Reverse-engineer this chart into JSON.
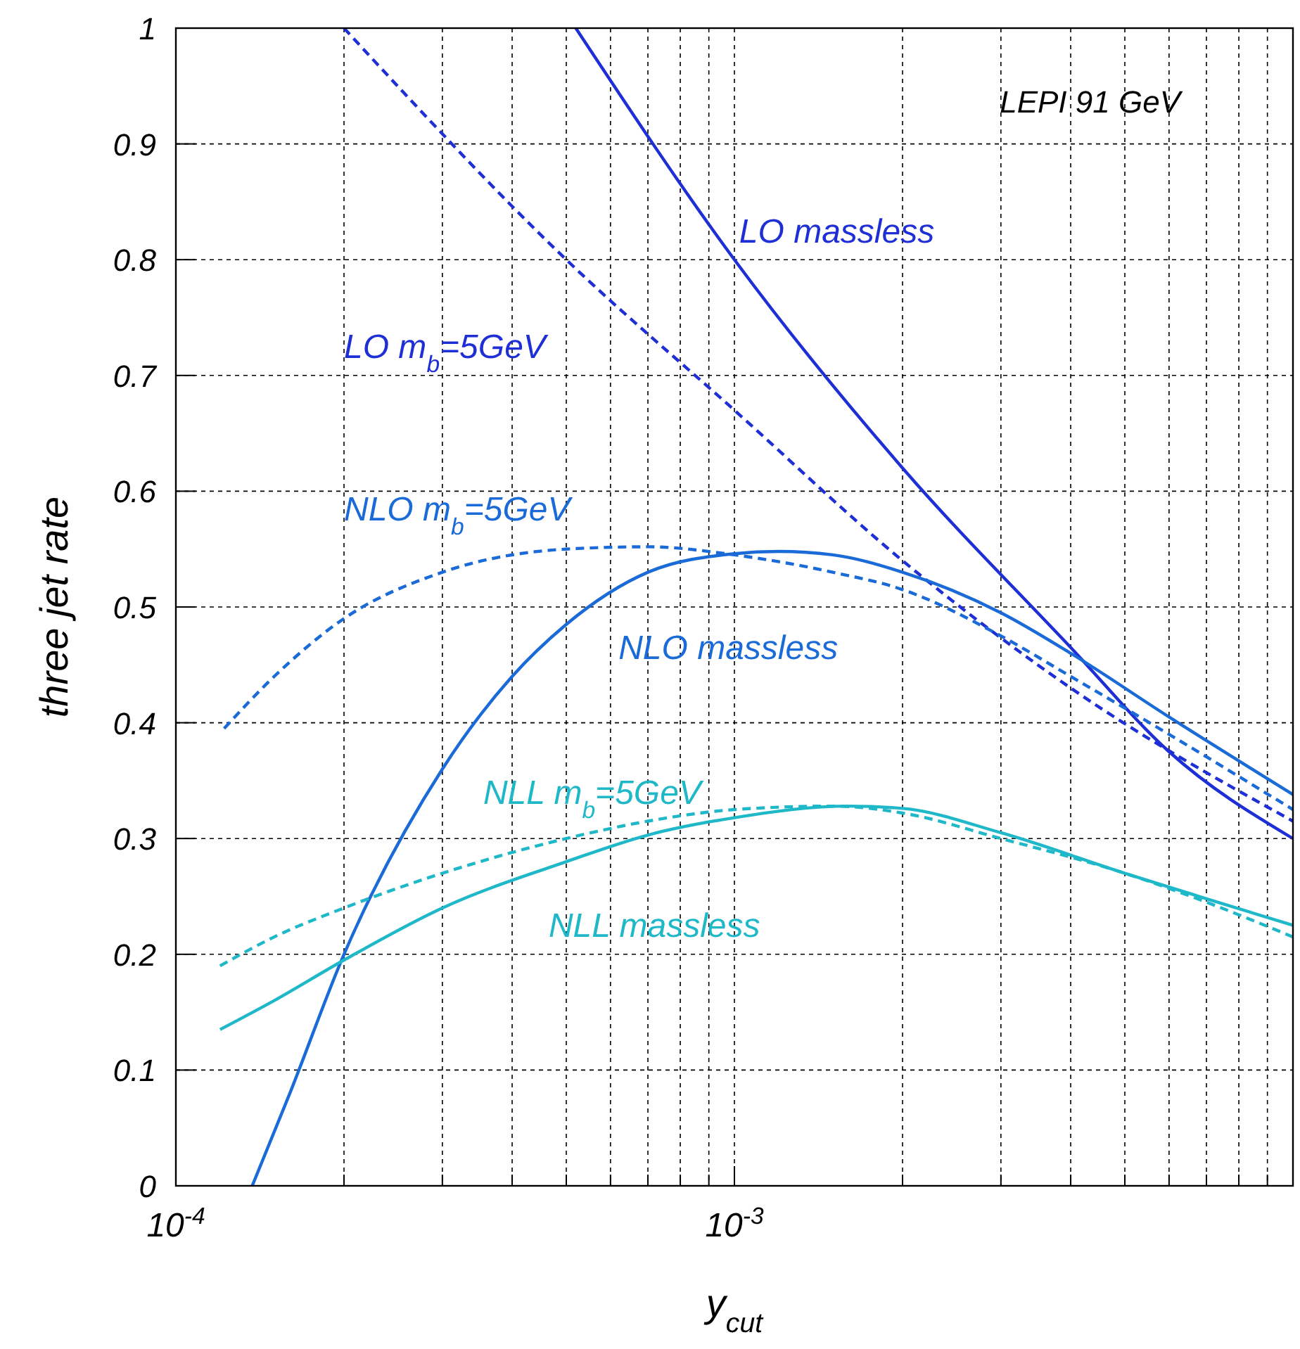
{
  "chart_data": {
    "type": "line",
    "xlabel": "y$_{cut}$",
    "ylabel": "three jet rate",
    "log": "x",
    "grid": true,
    "marker": "none",
    "annotations": [
      "LEPI 91 GeV"
    ],
    "xlim": [
      0.0001,
      0.01
    ],
    "ylim": [
      0,
      1
    ],
    "xticks": [
      {
        "value": 0.0001,
        "label": "10$^{-4}$"
      },
      {
        "value": 0.0002,
        "label": null
      },
      {
        "value": 0.0003,
        "label": null
      },
      {
        "value": 0.0004,
        "label": null
      },
      {
        "value": 0.0005,
        "label": null
      },
      {
        "value": 0.0006,
        "label": null
      },
      {
        "value": 0.0007,
        "label": null
      },
      {
        "value": 0.0008,
        "label": null
      },
      {
        "value": 0.0009,
        "label": null
      },
      {
        "value": 0.001,
        "label": "10$^{-3}$"
      },
      {
        "value": 0.002,
        "label": null
      },
      {
        "value": 0.003,
        "label": null
      },
      {
        "value": 0.004,
        "label": null
      },
      {
        "value": 0.005,
        "label": null
      },
      {
        "value": 0.006,
        "label": null
      },
      {
        "value": 0.007,
        "label": null
      },
      {
        "value": 0.008,
        "label": null
      },
      {
        "value": 0.009,
        "label": null
      }
    ],
    "yticks": [
      0,
      0.1,
      0.2,
      0.3,
      0.4,
      0.5,
      0.6,
      0.7,
      0.8,
      0.9,
      1
    ],
    "series": [
      {
        "name": "LO massless",
        "color": "#1f2fd6",
        "line_style": "solid",
        "x": [
          0.00052,
          0.001,
          0.002,
          0.004,
          0.006,
          0.01
        ],
        "values": [
          1.0,
          0.8,
          0.62,
          0.465,
          0.375,
          0.3
        ]
      },
      {
        "name": "LO m$_{b}$=5GeV",
        "color": "#1f2fd6",
        "line_style": "dashed",
        "x": [
          0.0002,
          0.0005,
          0.001,
          0.002,
          0.004,
          0.01
        ],
        "values": [
          1.0,
          0.8,
          0.67,
          0.54,
          0.43,
          0.315
        ]
      },
      {
        "name": "NLO massless",
        "color": "#1a6ad8",
        "line_style": "solid",
        "x": [
          0.000137,
          0.00016,
          0.0002,
          0.0003,
          0.0004,
          0.0005,
          0.0007,
          0.001,
          0.0012,
          0.0015,
          0.002,
          0.003,
          0.004,
          0.006,
          0.01
        ],
        "values": [
          0,
          0.08,
          0.2,
          0.36,
          0.44,
          0.485,
          0.53,
          0.546,
          0.548,
          0.545,
          0.53,
          0.495,
          0.46,
          0.405,
          0.338
        ]
      },
      {
        "name": "NLO m$_{b}$=5GeV",
        "color": "#1a6ad8",
        "line_style": "dashed",
        "x": [
          0.000122,
          0.00015,
          0.0002,
          0.0003,
          0.0005,
          0.0007,
          0.001,
          0.0015,
          0.002,
          0.003,
          0.004,
          0.006,
          0.01
        ],
        "values": [
          0.395,
          0.44,
          0.49,
          0.53,
          0.55,
          0.552,
          0.545,
          0.53,
          0.515,
          0.475,
          0.44,
          0.39,
          0.325
        ]
      },
      {
        "name": "NLL m$_{b}$=5GeV",
        "color": "#1fb8c8",
        "line_style": "dashed",
        "x": [
          0.00012,
          0.00015,
          0.0002,
          0.0003,
          0.0005,
          0.0007,
          0.001,
          0.0015,
          0.002,
          0.003,
          0.005,
          0.007,
          0.01
        ],
        "values": [
          0.19,
          0.215,
          0.24,
          0.27,
          0.3,
          0.315,
          0.325,
          0.328,
          0.322,
          0.3,
          0.27,
          0.245,
          0.215
        ]
      },
      {
        "name": "NLL massless",
        "color": "#1fb8c8",
        "line_style": "solid",
        "x": [
          0.00012,
          0.00015,
          0.0002,
          0.0003,
          0.0005,
          0.0007,
          0.001,
          0.0016,
          0.002,
          0.003,
          0.005,
          0.007,
          0.01
        ],
        "values": [
          0.135,
          0.16,
          0.195,
          0.24,
          0.28,
          0.303,
          0.318,
          0.328,
          0.326,
          0.305,
          0.27,
          0.248,
          0.225
        ]
      }
    ]
  }
}
